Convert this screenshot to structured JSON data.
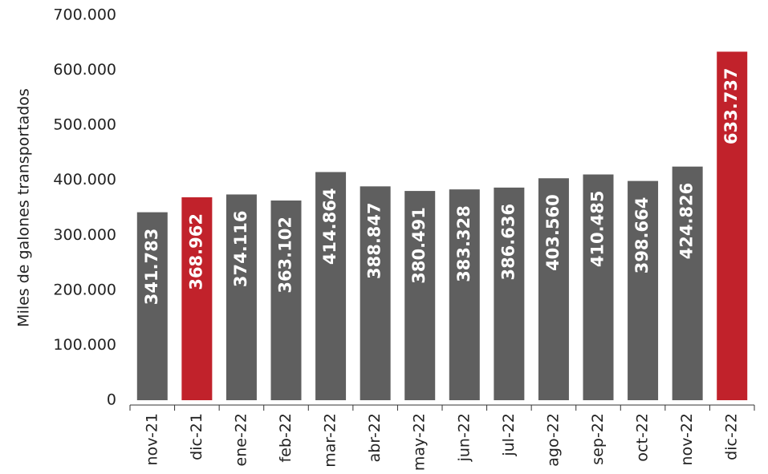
{
  "chart_data": {
    "type": "bar",
    "y_label": "Miles de galones transportados",
    "categories": [
      "nov-21",
      "dic-21",
      "ene-22",
      "feb-22",
      "mar-22",
      "abr-22",
      "may-22",
      "jun-22",
      "jul-22",
      "ago-22",
      "sep-22",
      "oct-22",
      "nov-22",
      "dic-22"
    ],
    "values": [
      341783,
      368962,
      374116,
      363102,
      414864,
      388847,
      380491,
      383328,
      386636,
      403560,
      410485,
      398664,
      424826,
      633737
    ],
    "value_labels": [
      "341.783",
      "368.962",
      "374.116",
      "363.102",
      "414.864",
      "388.847",
      "380.491",
      "383.328",
      "386.636",
      "403.560",
      "410.485",
      "398.664",
      "424.826",
      "633.737"
    ],
    "colors": [
      "#5f5f5f",
      "#c1222b",
      "#5f5f5f",
      "#5f5f5f",
      "#5f5f5f",
      "#5f5f5f",
      "#5f5f5f",
      "#5f5f5f",
      "#5f5f5f",
      "#5f5f5f",
      "#5f5f5f",
      "#5f5f5f",
      "#5f5f5f",
      "#c1222b"
    ],
    "ylim": [
      0,
      700000
    ],
    "yticks": [
      {
        "value": 0,
        "label": "0"
      },
      {
        "value": 100000,
        "label": "100.000"
      },
      {
        "value": 200000,
        "label": "200.000"
      },
      {
        "value": 300000,
        "label": "300.000"
      },
      {
        "value": 400000,
        "label": "400.000"
      },
      {
        "value": 500000,
        "label": "500.000"
      },
      {
        "value": 600000,
        "label": "600.000"
      },
      {
        "value": 700000,
        "label": "700.000"
      }
    ],
    "grid": false
  }
}
